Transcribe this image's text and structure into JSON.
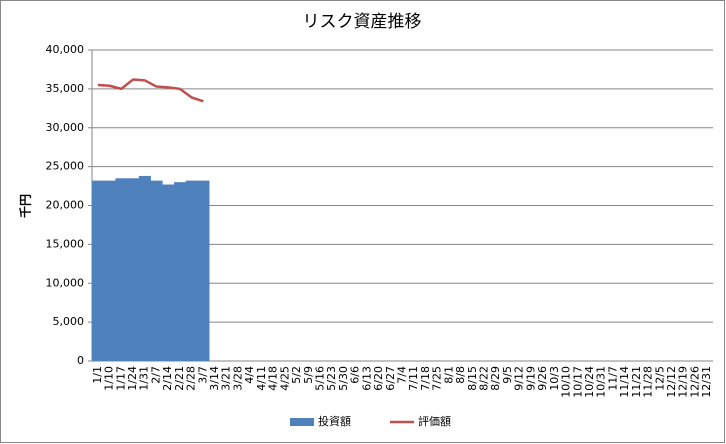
{
  "chart_data": {
    "type": "bar_line",
    "title": "リスク資産推移",
    "y_label": "千円",
    "categories": [
      "1/1",
      "1/10",
      "1/17",
      "1/24",
      "1/31",
      "2/7",
      "2/14",
      "2/21",
      "2/28",
      "3/7",
      "3/14",
      "3/21",
      "3/28",
      "4/4",
      "4/11",
      "4/18",
      "4/25",
      "5/2",
      "5/9",
      "5/16",
      "5/23",
      "5/30",
      "6/6",
      "6/13",
      "6/20",
      "6/27",
      "7/4",
      "7/11",
      "7/18",
      "7/25",
      "8/1",
      "8/8",
      "8/15",
      "8/22",
      "8/29",
      "9/5",
      "9/12",
      "9/19",
      "9/26",
      "10/3",
      "10/10",
      "10/17",
      "10/24",
      "10/31",
      "11/7",
      "11/14",
      "11/21",
      "11/28",
      "12/5",
      "12/12",
      "12/19",
      "12/26",
      "12/31"
    ],
    "series": [
      {
        "name": "投資額",
        "type": "bar",
        "color": "#4f81bd",
        "values": [
          23200,
          23200,
          23500,
          23500,
          23800,
          23200,
          22700,
          23000,
          23200,
          23200,
          null,
          null,
          null,
          null,
          null,
          null,
          null,
          null,
          null,
          null,
          null,
          null,
          null,
          null,
          null,
          null,
          null,
          null,
          null,
          null,
          null,
          null,
          null,
          null,
          null,
          null,
          null,
          null,
          null,
          null,
          null,
          null,
          null,
          null,
          null,
          null,
          null,
          null,
          null,
          null,
          null,
          null,
          null
        ]
      },
      {
        "name": "評価額",
        "type": "line",
        "color": "#c0504d",
        "values": [
          35500,
          35400,
          35000,
          36200,
          36100,
          35300,
          35200,
          35000,
          33900,
          33400,
          null,
          null,
          null,
          null,
          null,
          null,
          null,
          null,
          null,
          null,
          null,
          null,
          null,
          null,
          null,
          null,
          null,
          null,
          null,
          null,
          null,
          null,
          null,
          null,
          null,
          null,
          null,
          null,
          null,
          null,
          null,
          null,
          null,
          null,
          null,
          null,
          null,
          null,
          null,
          null,
          null,
          null,
          null
        ]
      }
    ],
    "ylim": [
      0,
      40000
    ],
    "yticks": [
      0,
      {
        "value": 5000,
        "label": "5,000"
      },
      {
        "value": 10000,
        "label": "10,000"
      },
      {
        "value": 15000,
        "label": "15,000"
      },
      {
        "value": 20000,
        "label": "20,000"
      },
      {
        "value": 25000,
        "label": "25,000"
      },
      {
        "value": 30000,
        "label": "30,000"
      },
      {
        "value": 35000,
        "label": "35,000"
      },
      {
        "value": 40000,
        "label": "40,000"
      }
    ],
    "grid": true,
    "legend": "bottom"
  }
}
